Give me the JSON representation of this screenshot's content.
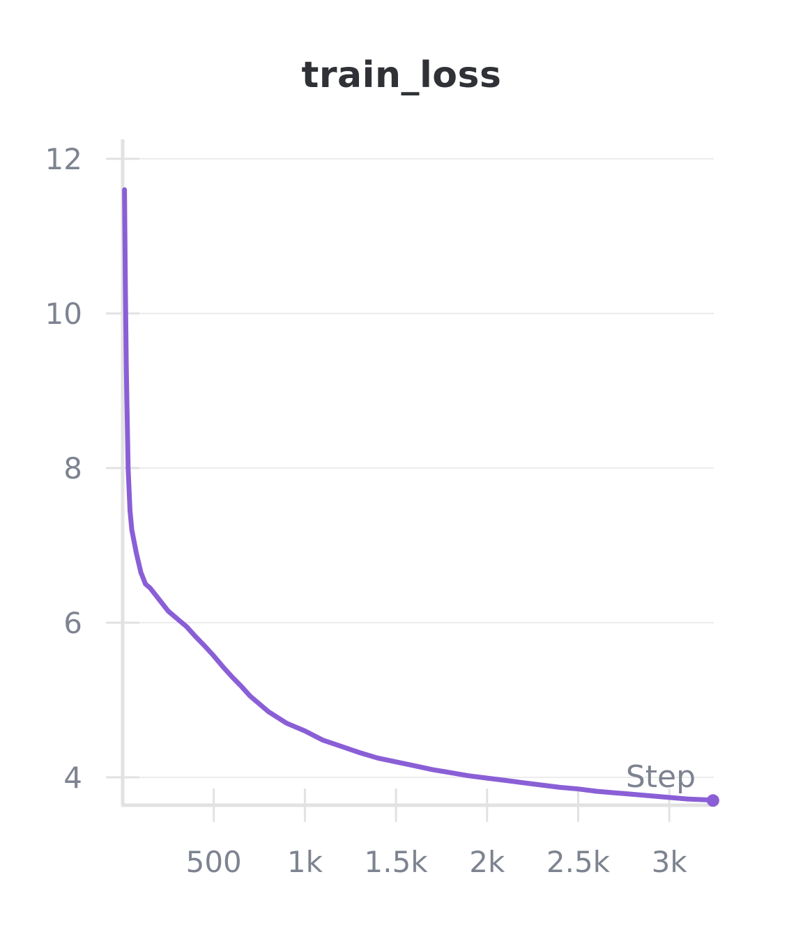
{
  "chart_data": {
    "type": "line",
    "title": "train_loss",
    "xlabel": "Step",
    "ylabel": "",
    "xlim": [
      0,
      3250
    ],
    "ylim": [
      3.82,
      12.12
    ],
    "x_ticks": [
      {
        "value": 500,
        "label": "500"
      },
      {
        "value": 1000,
        "label": "1k"
      },
      {
        "value": 1500,
        "label": "1.5k"
      },
      {
        "value": 2000,
        "label": "2k"
      },
      {
        "value": 2500,
        "label": "2.5k"
      },
      {
        "value": 3000,
        "label": "3k"
      }
    ],
    "y_ticks": [
      {
        "value": 4,
        "label": "4"
      },
      {
        "value": 6,
        "label": "6"
      },
      {
        "value": 8,
        "label": "8"
      },
      {
        "value": 10,
        "label": "10"
      },
      {
        "value": 12,
        "label": "12"
      }
    ],
    "grid": true,
    "legend": "none",
    "series": [
      {
        "color": "#8a5fd6",
        "x": [
          10,
          15,
          20,
          30,
          40,
          50,
          75,
          100,
          125,
          150,
          200,
          250,
          300,
          350,
          400,
          450,
          500,
          550,
          600,
          650,
          700,
          750,
          800,
          900,
          1000,
          1100,
          1200,
          1300,
          1400,
          1500,
          1600,
          1700,
          1800,
          1900,
          2000,
          2100,
          2200,
          2300,
          2400,
          2500,
          2600,
          2700,
          2800,
          2900,
          3000,
          3100,
          3200,
          3240
        ],
        "y": [
          11.6,
          10.3,
          9.3,
          8.0,
          7.45,
          7.2,
          6.9,
          6.65,
          6.5,
          6.45,
          6.3,
          6.15,
          6.05,
          5.95,
          5.82,
          5.7,
          5.57,
          5.43,
          5.3,
          5.18,
          5.05,
          4.95,
          4.85,
          4.7,
          4.6,
          4.48,
          4.4,
          4.32,
          4.25,
          4.2,
          4.15,
          4.1,
          4.06,
          4.02,
          3.99,
          3.96,
          3.93,
          3.9,
          3.87,
          3.85,
          3.82,
          3.8,
          3.78,
          3.76,
          3.74,
          3.72,
          3.71,
          3.7
        ]
      }
    ]
  }
}
